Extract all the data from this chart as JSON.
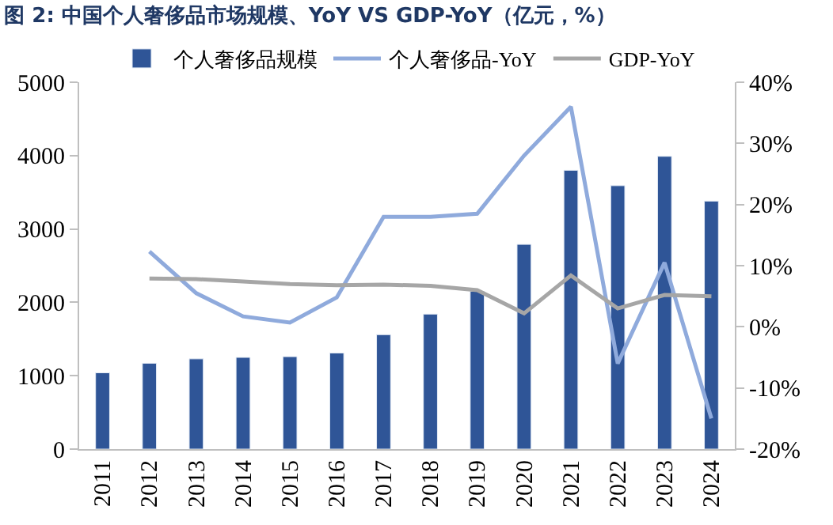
{
  "chart_data": {
    "type": "bar",
    "title": "图 2: 中国个人奢侈品市场规模、YoY VS GDP-YoY（亿元，%）",
    "categories": [
      "2011",
      "2012",
      "2013",
      "2014",
      "2015",
      "2016",
      "2017",
      "2018",
      "2019",
      "2020",
      "2021",
      "2022",
      "2023",
      "2024"
    ],
    "series": [
      {
        "name": "个人奢侈品规模",
        "color": "#2f5597",
        "values": [
          1040,
          1170,
          1230,
          1250,
          1260,
          1310,
          1560,
          1840,
          2150,
          2790,
          3800,
          3590,
          3990,
          3380
        ]
      },
      {
        "name": "个人奢侈品-YoY",
        "type": "line",
        "axis": "y2",
        "color": "#8faadc",
        "values": [
          null,
          12.3,
          5.5,
          1.7,
          0.7,
          4.8,
          18,
          18,
          18.5,
          28,
          36,
          -6,
          10.5,
          -15
        ]
      },
      {
        "name": "GDP-YoY",
        "type": "line",
        "axis": "y2",
        "color": "#a6a6a6",
        "values": [
          null,
          7.9,
          7.8,
          7.4,
          7.0,
          6.8,
          6.9,
          6.7,
          6.0,
          2.2,
          8.4,
          3.0,
          5.2,
          5.0
        ]
      }
    ],
    "ylim": [
      0,
      5000
    ],
    "yticks": [
      0,
      1000,
      2000,
      3000,
      4000,
      5000
    ],
    "y2lim": [
      -20,
      40
    ],
    "y2ticks": [
      {
        "value": -20,
        "label": "-20%"
      },
      {
        "value": -10,
        "label": "-10%"
      },
      {
        "value": 0,
        "label": "0%"
      },
      {
        "value": 10,
        "label": "10%"
      },
      {
        "value": 20,
        "label": "20%"
      },
      {
        "value": 30,
        "label": "30%"
      },
      {
        "value": 40,
        "label": "40%"
      }
    ],
    "legend": "top",
    "marker": "none",
    "line_style": "solid"
  }
}
